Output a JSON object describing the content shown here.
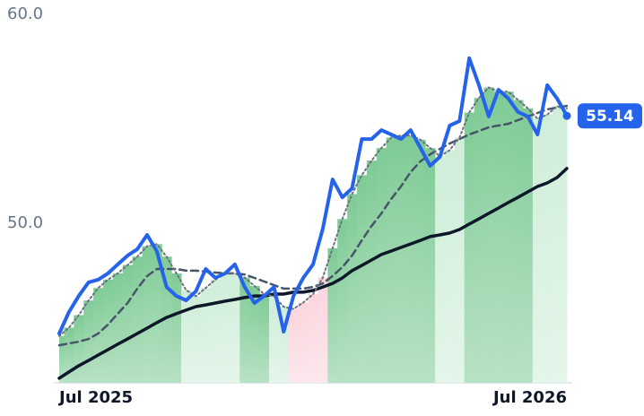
{
  "chart_data": {
    "type": "line",
    "categories": [
      "Jul 2025",
      null,
      null,
      null,
      null,
      null,
      null,
      null,
      null,
      null,
      null,
      null,
      null,
      null,
      null,
      null,
      null,
      null,
      null,
      null,
      null,
      null,
      null,
      null,
      null,
      null,
      null,
      null,
      null,
      null,
      null,
      null,
      null,
      null,
      null,
      null,
      null,
      null,
      null,
      null,
      null,
      null,
      null,
      null,
      null,
      null,
      null,
      null,
      null,
      null,
      null,
      null,
      "Jul 2026"
    ],
    "ylim": [
      42.36,
      60
    ],
    "yticks": [
      {
        "value": 60,
        "label": "60.0"
      },
      {
        "value": 50,
        "label": "50.0"
      }
    ],
    "grid": false,
    "series": [
      {
        "color": "#2563eb",
        "style": "solid",
        "width": 4,
        "values": [
          44.72,
          45.75,
          46.52,
          47.17,
          47.3,
          47.6,
          48.03,
          48.45,
          48.76,
          49.44,
          48.67,
          46.95,
          46.52,
          46.31,
          46.74,
          47.81,
          47.38,
          47.6,
          48.03,
          46.95,
          46.18,
          46.52,
          46.95,
          44.81,
          46.52,
          47.38,
          48.03,
          49.74,
          52.1,
          51.24,
          51.67,
          54.03,
          54.03,
          54.46,
          54.25,
          54.03,
          54.46,
          53.61,
          52.75,
          53.18,
          54.68,
          54.89,
          57.9,
          56.61,
          55.11,
          56.39,
          55.97,
          55.32,
          55.11,
          54.25,
          56.61,
          55.97,
          55.14
        ],
        "value_labels": [
          null,
          null,
          null,
          null,
          null,
          null,
          null,
          null,
          null,
          null,
          null,
          null,
          null,
          null,
          null,
          null,
          null,
          null,
          null,
          null,
          null,
          null,
          null,
          null,
          null,
          null,
          null,
          null,
          null,
          null,
          null,
          null,
          null,
          null,
          null,
          null,
          null,
          null,
          null,
          null,
          null,
          null,
          null,
          null,
          null,
          null,
          null,
          null,
          null,
          null,
          null,
          null,
          "55.14"
        ]
      },
      {
        "color": "#6b7280",
        "style": "dotted",
        "width": 2,
        "fill": true,
        "values": [
          44.6,
          45.0,
          45.6,
          46.3,
          46.9,
          47.3,
          47.6,
          48.0,
          48.4,
          48.9,
          49.0,
          48.4,
          47.6,
          46.8,
          46.5,
          46.9,
          47.3,
          47.6,
          47.6,
          47.4,
          47.0,
          46.6,
          46.5,
          46.0,
          45.9,
          46.2,
          46.6,
          47.4,
          48.8,
          50.2,
          51.4,
          52.3,
          53.0,
          53.6,
          54.1,
          54.2,
          54.2,
          54.0,
          53.6,
          53.2,
          53.5,
          54.1,
          55.3,
          56.0,
          56.5,
          56.3,
          56.3,
          55.9,
          55.5,
          55.0,
          55.2,
          55.6,
          55.5
        ]
      },
      {
        "color": "#475569",
        "style": "dashed",
        "width": 2.5,
        "values": [
          44.16,
          44.25,
          44.33,
          44.46,
          44.72,
          45.15,
          45.67,
          46.18,
          46.87,
          47.47,
          47.81,
          47.81,
          47.81,
          47.73,
          47.73,
          47.68,
          47.64,
          47.6,
          47.6,
          47.55,
          47.38,
          47.21,
          47.04,
          46.87,
          46.87,
          46.87,
          46.95,
          47.12,
          47.47,
          47.9,
          48.45,
          49.18,
          49.87,
          50.47,
          51.16,
          51.76,
          52.45,
          52.96,
          53.3,
          53.56,
          53.82,
          54.03,
          54.25,
          54.42,
          54.59,
          54.68,
          54.76,
          54.94,
          55.11,
          55.28,
          55.45,
          55.54,
          55.62
        ]
      },
      {
        "color": "#0f172a",
        "style": "solid",
        "width": 3.5,
        "values": [
          42.58,
          42.88,
          43.18,
          43.43,
          43.69,
          43.95,
          44.21,
          44.46,
          44.72,
          44.98,
          45.24,
          45.49,
          45.67,
          45.84,
          46.01,
          46.09,
          46.18,
          46.27,
          46.35,
          46.44,
          46.52,
          46.52,
          46.61,
          46.61,
          46.7,
          46.7,
          46.78,
          46.95,
          47.12,
          47.38,
          47.73,
          47.98,
          48.24,
          48.5,
          48.67,
          48.84,
          49.01,
          49.18,
          49.36,
          49.44,
          49.53,
          49.7,
          49.96,
          50.21,
          50.47,
          50.73,
          50.99,
          51.24,
          51.5,
          51.76,
          51.93,
          52.19,
          52.62
        ]
      }
    ],
    "band_colors": [
      "#7fcb96",
      "#7fcb96",
      "#7fcb96",
      "#7fcb96",
      "#7fcb96",
      "#7fcb96",
      "#7fcb96",
      "#7fcb96",
      "#7fcb96",
      "#7fcb96",
      "#7fcb96",
      "#7fcb96",
      "#7fcb96",
      "#cfeed9",
      "#cfeed9",
      "#cfeed9",
      "#cfeed9",
      "#cfeed9",
      "#cfeed9",
      "#7fcb96",
      "#7fcb96",
      "#7fcb96",
      "#cfeed9",
      "#cfeed9",
      "#fbd5de",
      "#fbd5de",
      "#fbd5de",
      "#fbd5de",
      "#7fcb96",
      "#7fcb96",
      "#7fcb96",
      "#7fcb96",
      "#7fcb96",
      "#7fcb96",
      "#7fcb96",
      "#7fcb96",
      "#7fcb96",
      "#7fcb96",
      "#7fcb96",
      "#cfeed9",
      "#cfeed9",
      "#cfeed9",
      "#7fcb96",
      "#7fcb96",
      "#7fcb96",
      "#7fcb96",
      "#7fcb96",
      "#7fcb96",
      "#7fcb96",
      "#cfeed9",
      "#cfeed9",
      "#cfeed9",
      "#cfeed9"
    ],
    "badge_color": "#2563eb"
  }
}
